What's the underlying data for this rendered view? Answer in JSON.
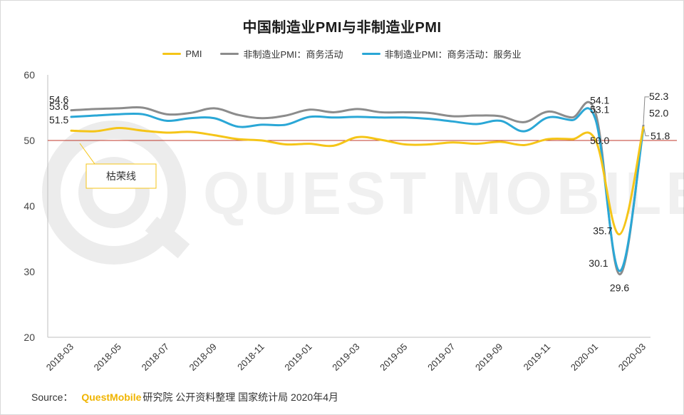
{
  "chart_data": {
    "type": "line",
    "title": "中国制造业PMI与非制造业PMI",
    "ylim": [
      20,
      60
    ],
    "yticks": [
      20,
      30,
      40,
      50,
      60
    ],
    "x": [
      "2018-03",
      "2018-04",
      "2018-05",
      "2018-06",
      "2018-07",
      "2018-08",
      "2018-09",
      "2018-10",
      "2018-11",
      "2018-12",
      "2019-01",
      "2019-02",
      "2019-03",
      "2019-04",
      "2019-05",
      "2019-06",
      "2019-07",
      "2019-08",
      "2019-09",
      "2019-10",
      "2019-11",
      "2019-12",
      "2020-01",
      "2020-02",
      "2020-03"
    ],
    "xtick_labels": [
      "2018-03",
      "2018-05",
      "2018-07",
      "2018-09",
      "2018-11",
      "2019-01",
      "2019-03",
      "2019-05",
      "2019-07",
      "2019-09",
      "2019-11",
      "2020-01",
      "2020-03"
    ],
    "series": [
      {
        "name": "PMI",
        "color": "#f5c518",
        "values": [
          51.5,
          51.4,
          51.9,
          51.5,
          51.2,
          51.3,
          50.8,
          50.2,
          50.0,
          49.4,
          49.5,
          49.2,
          50.5,
          50.1,
          49.4,
          49.4,
          49.7,
          49.5,
          49.8,
          49.3,
          50.2,
          50.2,
          50.0,
          35.7,
          52.0
        ]
      },
      {
        "name": "非制造业PMI：商务活动",
        "color": "#8c8c8c",
        "values": [
          54.6,
          54.8,
          54.9,
          55.0,
          54.0,
          54.2,
          54.9,
          53.9,
          53.4,
          53.8,
          54.7,
          54.3,
          54.8,
          54.3,
          54.3,
          54.2,
          53.7,
          53.8,
          53.7,
          52.8,
          54.4,
          53.5,
          54.1,
          29.6,
          52.3
        ]
      },
      {
        "name": "非制造业PMI：商务活动：服务业",
        "color": "#2aa7d6",
        "values": [
          53.6,
          53.8,
          54.0,
          54.0,
          53.0,
          53.4,
          53.4,
          52.1,
          52.4,
          52.4,
          53.6,
          53.5,
          53.6,
          53.5,
          53.5,
          53.3,
          52.9,
          52.5,
          53.0,
          51.4,
          53.5,
          53.1,
          53.1,
          30.1,
          51.8
        ]
      }
    ],
    "data_labels": [
      {
        "series": 1,
        "index": 0,
        "text": "54.6"
      },
      {
        "series": 2,
        "index": 0,
        "text": "53.6"
      },
      {
        "series": 0,
        "index": 0,
        "text": "51.5"
      },
      {
        "series": 1,
        "index": 22,
        "text": "54.1"
      },
      {
        "series": 2,
        "index": 22,
        "text": "53.1"
      },
      {
        "series": 0,
        "index": 22,
        "text": "50.0"
      },
      {
        "series": 0,
        "index": 23,
        "text": "35.7"
      },
      {
        "series": 2,
        "index": 23,
        "text": "30.1"
      },
      {
        "series": 1,
        "index": 23,
        "text": "29.6"
      },
      {
        "series": 1,
        "index": 24,
        "text": "52.3"
      },
      {
        "series": 0,
        "index": 24,
        "text": "52.0"
      },
      {
        "series": 2,
        "index": 24,
        "text": "51.8"
      }
    ],
    "reference_line": {
      "value": 50,
      "color": "#c0392b"
    },
    "annotation": {
      "text": "枯荣线",
      "color": "#f5c518"
    }
  },
  "watermark_text": "QUEST MOBILE",
  "source": {
    "label": "Source：",
    "brand": "QuestMobile",
    "rest": "研究院 公开资料整理 国家统计局 2020年4月"
  }
}
